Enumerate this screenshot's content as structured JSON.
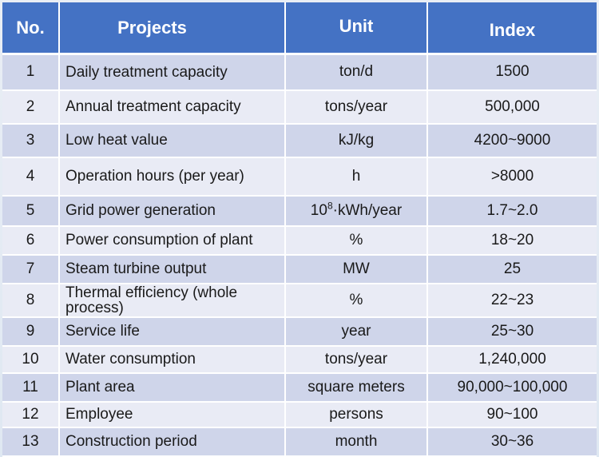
{
  "headers": [
    "No.",
    "Projects",
    "Unit",
    "Index"
  ],
  "rows": [
    {
      "no": "1",
      "project": "Daily treatment capacity",
      "unit": "ton/d",
      "index": "1500"
    },
    {
      "no": "2",
      "project": "Annual treatment capacity",
      "unit": "tons/year",
      "index": "500,000"
    },
    {
      "no": "3",
      "project": "Low heat value",
      "unit": "kJ/kg",
      "index": "4200~9000"
    },
    {
      "no": "4",
      "project": "Operation hours (per year)",
      "unit": "h",
      "index": ">8000"
    },
    {
      "no": "5",
      "project": "Grid power generation",
      "unit_base": "10",
      "unit_sup": "8",
      "unit_rest": "·kWh/year",
      "index": "1.7~2.0"
    },
    {
      "no": "6",
      "project": "Power consumption of plant",
      "unit": "%",
      "index": "18~20"
    },
    {
      "no": "7",
      "project": "Steam turbine output",
      "unit": "MW",
      "index": "25"
    },
    {
      "no": "8",
      "project": "Thermal efficiency (whole process)",
      "unit": "%",
      "index": "22~23"
    },
    {
      "no": "9",
      "project": "Service life",
      "unit": "year",
      "index": "25~30"
    },
    {
      "no": "10",
      "project": "Water consumption",
      "unit": "tons/year",
      "index": "1,240,000"
    },
    {
      "no": "11",
      "project": "Plant area",
      "unit": "square meters",
      "index": "90,000~100,000"
    },
    {
      "no": "12",
      "project": "Employee",
      "unit": "persons",
      "index": "90~100"
    },
    {
      "no": "13",
      "project": "Construction period",
      "unit": "month",
      "index": "30~36"
    }
  ],
  "colors": {
    "header": "#4472c4",
    "row_odd": "#cfd5ea",
    "row_even": "#e9ebf5"
  }
}
